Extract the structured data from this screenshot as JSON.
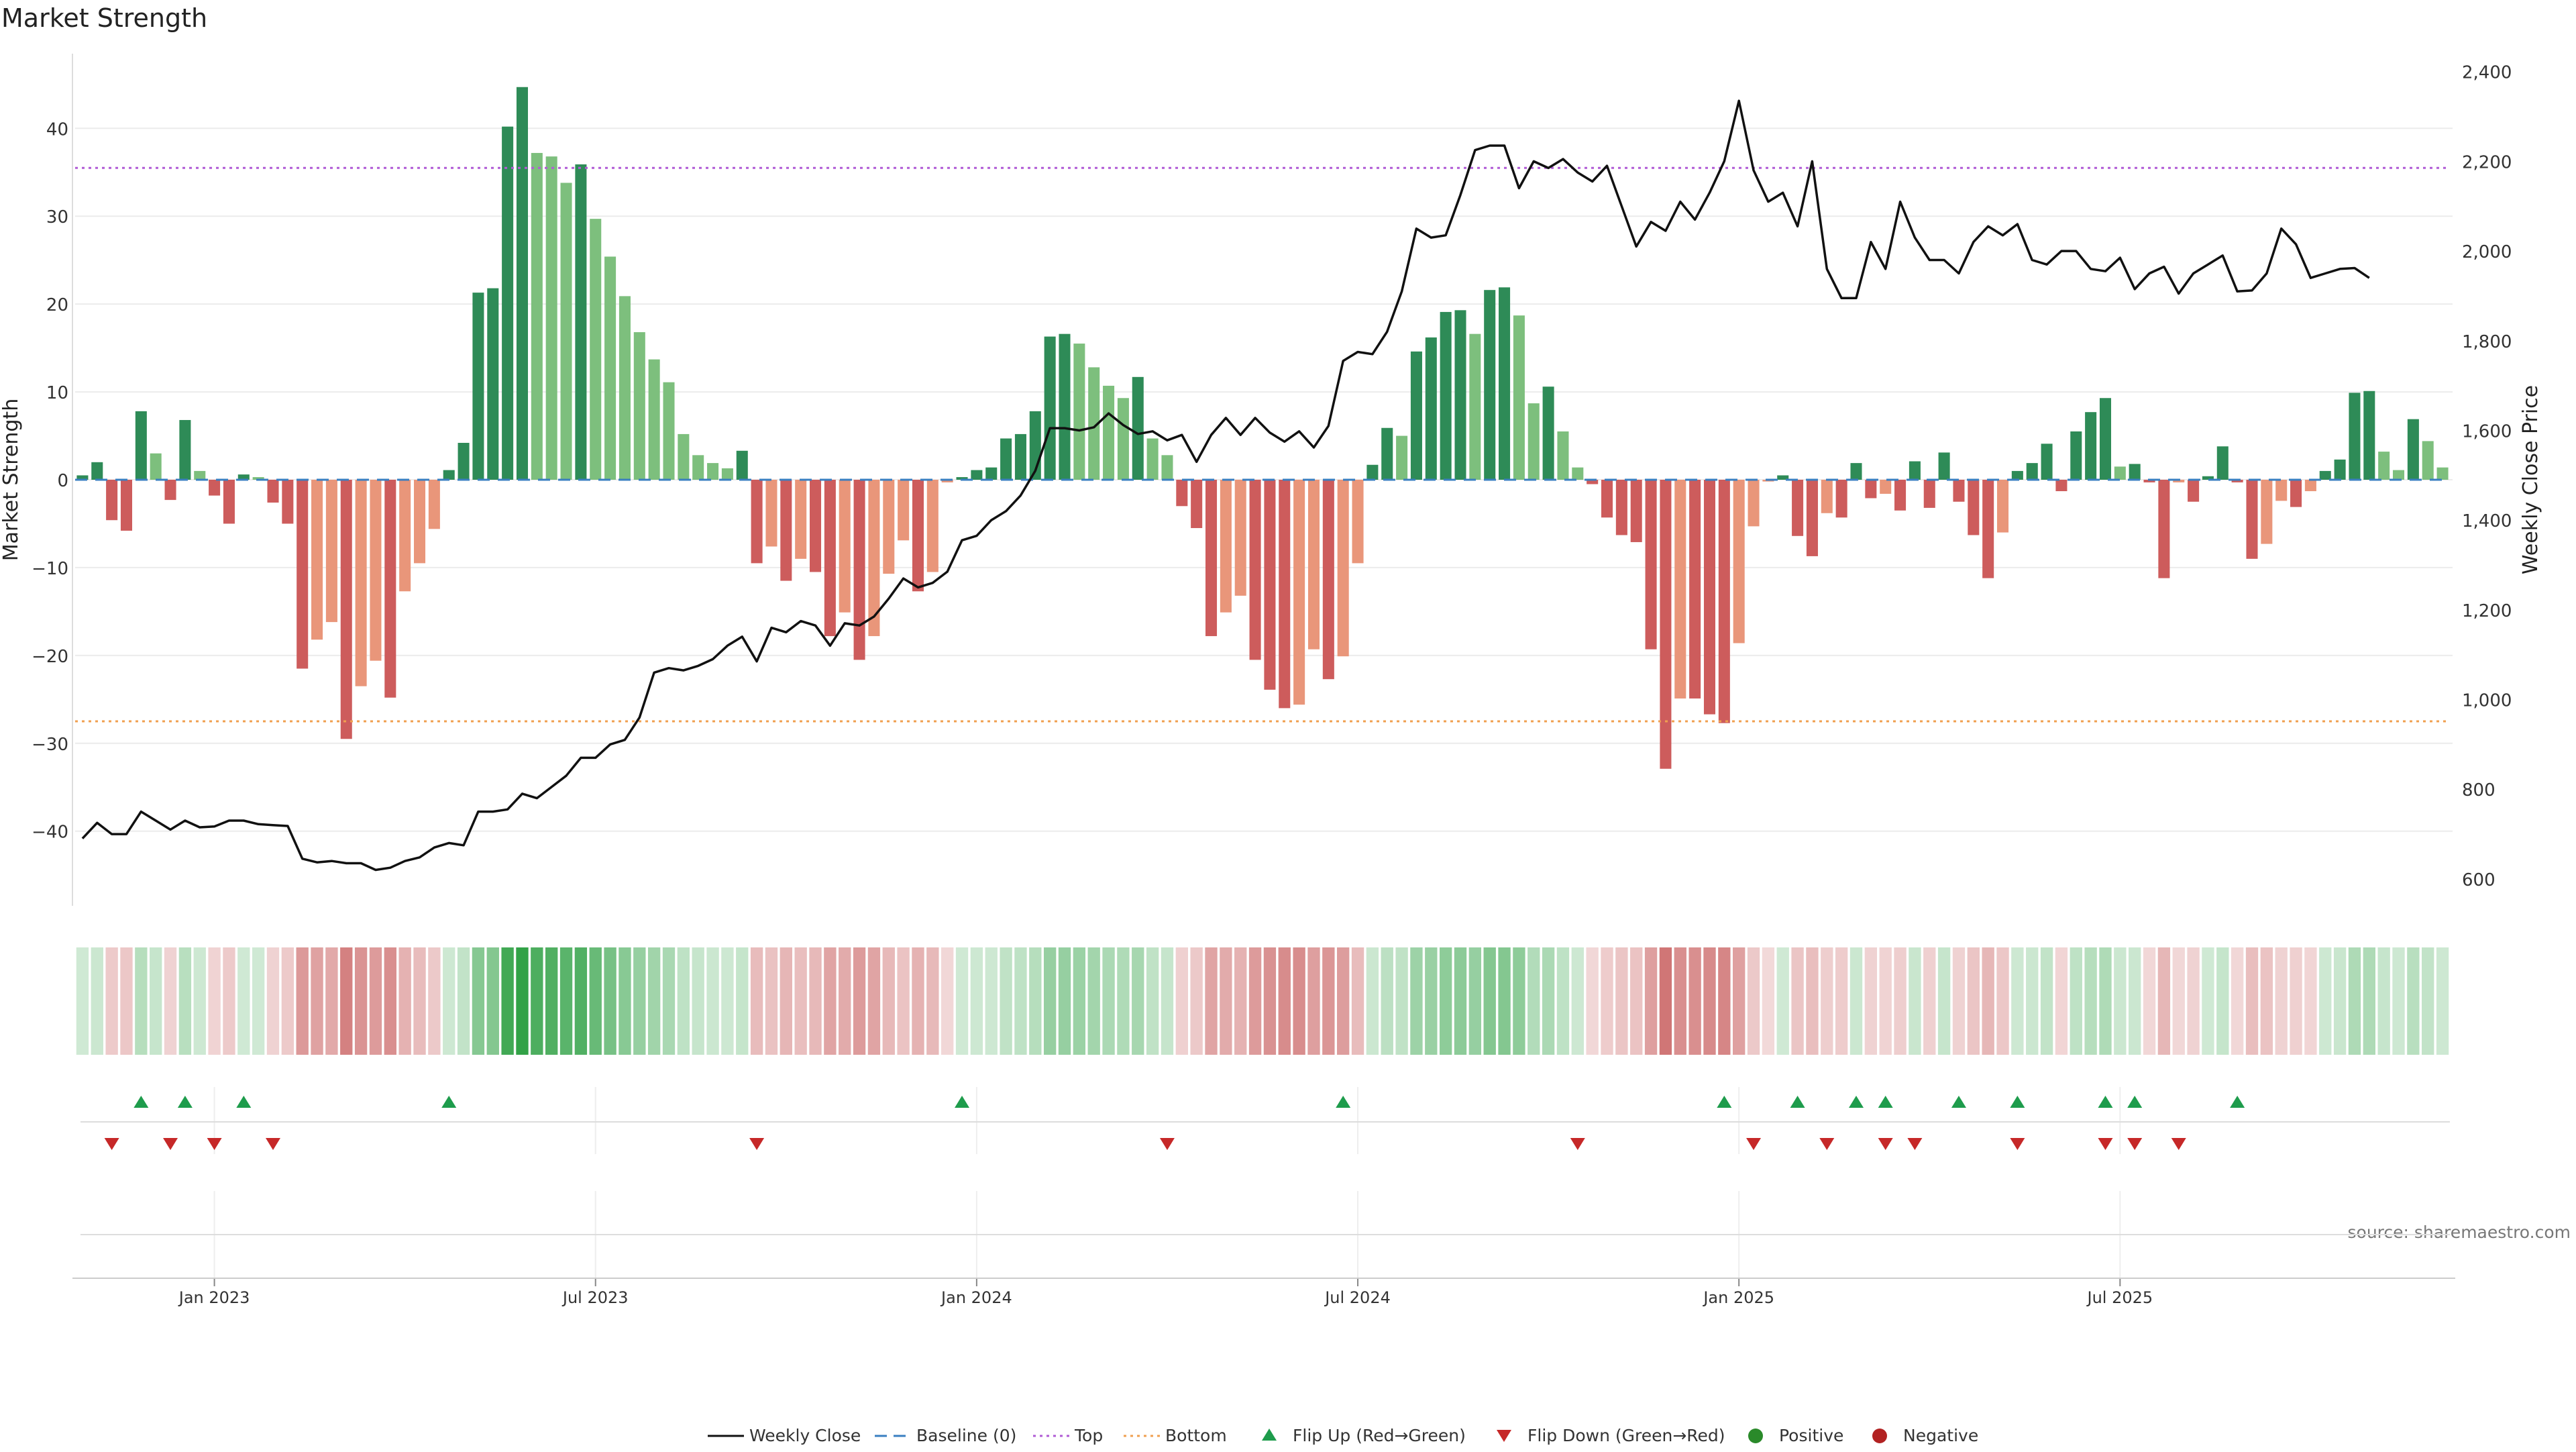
{
  "title": "Market Strength",
  "source": "source: sharemaestro.com",
  "chart_data": {
    "type": "bar",
    "title": "Market Strength",
    "ylabel_left": "Market Strength",
    "ylabel_right": "Weekly Close Price",
    "ylim_left": [
      -48.5,
      48.5
    ],
    "ylim_right": [
      540,
      2440
    ],
    "yticks_left": [
      {
        "v": 40,
        "t": "40"
      },
      {
        "v": 30,
        "t": "30"
      },
      {
        "v": 20,
        "t": "20"
      },
      {
        "v": 10,
        "t": "10"
      },
      {
        "v": 0,
        "t": "0"
      },
      {
        "v": -10,
        "t": "−10"
      },
      {
        "v": -20,
        "t": "−20"
      },
      {
        "v": -30,
        "t": "−30"
      },
      {
        "v": -40,
        "t": "−40"
      }
    ],
    "yticks_right": [
      {
        "v": 2400,
        "t": "2,400"
      },
      {
        "v": 2200,
        "t": "2,200"
      },
      {
        "v": 2000,
        "t": "2,000"
      },
      {
        "v": 1800,
        "t": "1,800"
      },
      {
        "v": 1600,
        "t": "1,600"
      },
      {
        "v": 1400,
        "t": "1,400"
      },
      {
        "v": 1200,
        "t": "1,200"
      },
      {
        "v": 1000,
        "t": "1,000"
      },
      {
        "v": 800,
        "t": "800"
      },
      {
        "v": 600,
        "t": "600"
      }
    ],
    "xticks": [
      {
        "week": 9,
        "label": "Jan 2023"
      },
      {
        "week": 35,
        "label": "Jul 2023"
      },
      {
        "week": 61,
        "label": "Jan 2024"
      },
      {
        "week": 87,
        "label": "Jul 2024"
      },
      {
        "week": 113,
        "label": "Jan 2025"
      },
      {
        "week": 139,
        "label": "Jul 2025"
      }
    ],
    "top_threshold": 35.5,
    "bottom_threshold": -27.5,
    "colors": {
      "strong_up": "#2e8b57",
      "weak_up": "#7dbf7d",
      "strong_down": "#cd5c5c",
      "weak_down": "#e9967a",
      "price": "#111111",
      "top": "#b05bd6",
      "bottom": "#f0a050",
      "baseline": "#3a7fc1",
      "flip_up": "#1e9c4c",
      "flip_down": "#c62828",
      "positive": "#2a8a2a",
      "negative": "#b22222"
    },
    "strength": [
      0.5,
      2,
      -4.6,
      -5.8,
      7.8,
      3,
      -2.3,
      6.8,
      1,
      -1.8,
      -5,
      0.6,
      0.3,
      -2.6,
      -5,
      -21.5,
      -18.2,
      -16.2,
      -29.5,
      -23.5,
      -20.6,
      -24.8,
      -12.7,
      -9.5,
      -5.6,
      1.1,
      4.2,
      21.3,
      21.8,
      40.2,
      44.7,
      37.2,
      36.8,
      33.8,
      35.9,
      29.7,
      25.4,
      20.9,
      16.8,
      13.7,
      11.1,
      5.2,
      2.8,
      1.9,
      1.3,
      3.3,
      -9.5,
      -7.6,
      -11.5,
      -9,
      -10.5,
      -17.8,
      -15.1,
      -20.5,
      -17.8,
      -10.7,
      -6.9,
      -12.7,
      -10.5,
      -0.3,
      0.3,
      1.1,
      1.4,
      4.7,
      5.2,
      7.8,
      16.3,
      16.6,
      15.5,
      12.8,
      10.7,
      9.3,
      11.7,
      4.7,
      2.8,
      -3,
      -5.5,
      -17.8,
      -15.1,
      -13.2,
      -20.5,
      -23.9,
      -26,
      -25.6,
      -19.3,
      -22.7,
      -20.1,
      -9.5,
      1.7,
      5.9,
      5,
      14.6,
      16.2,
      19.1,
      19.3,
      16.6,
      21.6,
      21.9,
      18.7,
      8.7,
      10.6,
      5.5,
      1.4,
      -0.5,
      -4.3,
      -6.3,
      -7.1,
      -19.3,
      -32.9,
      -24.9,
      -24.9,
      -26.7,
      -27.7,
      -18.6,
      -5.3,
      -0.2,
      0.5,
      -6.4,
      -8.7,
      -3.8,
      -4.3,
      1.9,
      -2.1,
      -1.6,
      -3.5,
      2.1,
      -3.2,
      3.1,
      -2.5,
      -6.3,
      -11.2,
      -6,
      1,
      1.9,
      4.1,
      -1.3,
      5.5,
      7.7,
      9.3,
      1.5,
      1.8,
      -0.3,
      -11.2,
      -0.3,
      -2.5,
      0.4,
      3.8,
      -0.3,
      -9,
      -7.3,
      -2.4,
      -3.1,
      -1.3,
      1,
      2.3,
      9.9,
      10.1,
      3.2,
      1.1,
      6.9,
      4.4,
      1.4
    ],
    "closes": [
      690,
      725,
      700,
      700,
      750,
      730,
      710,
      730,
      715,
      717,
      730,
      730,
      722,
      720,
      718,
      645,
      637,
      640,
      635,
      635,
      620,
      625,
      640,
      648,
      670,
      680,
      675,
      750,
      750,
      755,
      790,
      780,
      805,
      830,
      870,
      870,
      900,
      910,
      960,
      1060,
      1070,
      1065,
      1075,
      1090,
      1120,
      1140,
      1085,
      1160,
      1150,
      1175,
      1165,
      1120,
      1170,
      1165,
      1185,
      1225,
      1270,
      1250,
      1260,
      1285,
      1355,
      1365,
      1400,
      1420,
      1455,
      1510,
      1605,
      1605,
      1600,
      1607,
      1638,
      1612,
      1592,
      1598,
      1578,
      1590,
      1530,
      1590,
      1628,
      1590,
      1628,
      1595,
      1575,
      1598,
      1562,
      1610,
      1755,
      1775,
      1770,
      1820,
      1910,
      2050,
      2030,
      2035,
      2125,
      2225,
      2235,
      2235,
      2140,
      2200,
      2185,
      2205,
      2175,
      2155,
      2190,
      2100,
      2010,
      2065,
      2045,
      2110,
      2070,
      2130,
      2200,
      2335,
      2180,
      2110,
      2130,
      2055,
      2200,
      1960,
      1895,
      1895,
      2020,
      1960,
      2110,
      2030,
      1980,
      1980,
      1950,
      2020,
      2055,
      2035,
      2060,
      1980,
      1970,
      2000,
      2000,
      1960,
      1955,
      1985,
      1915,
      1950,
      1965,
      1905,
      1950,
      1970,
      1990,
      1910,
      1912,
      1950,
      2050,
      2015,
      1940,
      1950,
      1960,
      1962,
      1940
    ],
    "heat_strip": {
      "type": "heatmap",
      "description": "weekly strength intensity"
    },
    "flip_up_weeks": [
      4,
      7,
      11,
      25,
      60,
      86,
      112,
      117,
      121,
      123,
      128,
      132,
      138,
      140,
      147
    ],
    "flip_down_weeks": [
      2,
      6,
      9,
      13,
      46,
      74,
      102,
      114,
      119,
      123,
      125,
      132,
      138,
      140,
      143
    ],
    "legend": [
      {
        "key": "weekly_close",
        "label": "Weekly Close"
      },
      {
        "key": "baseline",
        "label": "Baseline (0)"
      },
      {
        "key": "top",
        "label": "Top"
      },
      {
        "key": "bottom",
        "label": "Bottom"
      },
      {
        "key": "flip_up",
        "label": "Flip Up (Red→Green)"
      },
      {
        "key": "flip_down",
        "label": "Flip Down (Green→Red)"
      },
      {
        "key": "positive",
        "label": "Positive"
      },
      {
        "key": "negative",
        "label": "Negative"
      }
    ]
  }
}
